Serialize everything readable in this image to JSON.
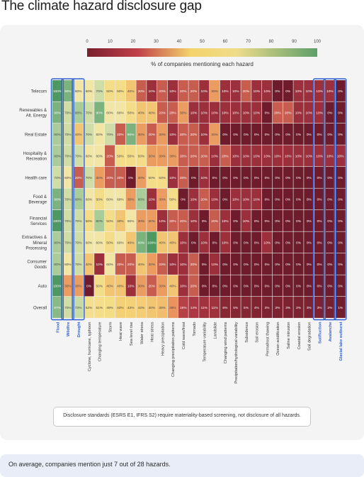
{
  "page": {
    "title": "The climate hazard disclosure gap",
    "note": "Disclosure standards (ESRS E1, IFRS S2) require materiality-based screening, not disclosure of all hazards.",
    "footer": "On average, companies mention just 7 out of 28 hazards."
  },
  "chart_data": {
    "type": "heatmap",
    "title": "% of companies mentioning each hazard",
    "colorbar": {
      "min": 0,
      "max": 100,
      "ticks": [
        0,
        10,
        20,
        30,
        40,
        50,
        60,
        70,
        80,
        90,
        100
      ],
      "colors": [
        "#7a1f2e",
        "#c0414a",
        "#f4d36b",
        "#5e9e6a"
      ]
    },
    "rows": [
      "Telecom",
      "Renewables & Alt. Energy",
      "Real Estate",
      "Hospitality & Recreation",
      "Health care",
      "Food & Beverage",
      "Financial Services",
      "Extractives & Mineral Processing",
      "Consumer Goods",
      "Auto",
      "Overall"
    ],
    "columns": [
      "Flood",
      "Wildfire",
      "Drought",
      "Cyclone, hurricane, typhoon",
      "Changing temperature",
      "Storm",
      "Heat wave",
      "Sea level rise",
      "Water stress",
      "Heat stress",
      "Heavy precipitation",
      "Changing precipitation patterns",
      "Cold wave/frost",
      "Tornado",
      "Temperature variability",
      "Landslide",
      "Changing wind patterns",
      "Precipitation/hydrological variability",
      "Subsidence",
      "Soil erosion",
      "Permafrost thawing",
      "Ocean acidification",
      "Saline intrusion",
      "Coastal erosion",
      "Soil degradation",
      "Solifluction",
      "Avalanche",
      "Glacial lake outburst"
    ],
    "highlighted_columns": [
      "Flood",
      "Wildfire",
      "Drought",
      "Solifluction",
      "Avalanche",
      "Glacial lake outburst"
    ],
    "values": [
      [
        100,
        90,
        60,
        60,
        70,
        50,
        50,
        40,
        20,
        10,
        20,
        10,
        20,
        20,
        10,
        30,
        10,
        10,
        20,
        10,
        10,
        0,
        0,
        10,
        10,
        10,
        10,
        0
      ],
      [
        90,
        70,
        80,
        70,
        90,
        60,
        60,
        50,
        40,
        40,
        20,
        20,
        30,
        10,
        10,
        10,
        10,
        10,
        10,
        10,
        0,
        20,
        20,
        10,
        10,
        10,
        0,
        0
      ],
      [
        80,
        70,
        40,
        70,
        60,
        70,
        20,
        90,
        30,
        20,
        30,
        10,
        20,
        20,
        10,
        30,
        0,
        0,
        0,
        0,
        0,
        0,
        0,
        0,
        0,
        0,
        0,
        0
      ],
      [
        80,
        70,
        70,
        60,
        60,
        20,
        50,
        50,
        50,
        30,
        30,
        30,
        20,
        20,
        20,
        10,
        20,
        10,
        10,
        10,
        10,
        10,
        10,
        10,
        10,
        10,
        10,
        10
      ],
      [
        70,
        60,
        20,
        70,
        30,
        20,
        20,
        0,
        30,
        50,
        50,
        10,
        20,
        0,
        10,
        0,
        0,
        0,
        0,
        0,
        0,
        0,
        0,
        0,
        0,
        0,
        0,
        0
      ],
      [
        90,
        70,
        80,
        60,
        50,
        60,
        60,
        30,
        80,
        10,
        30,
        50,
        0,
        10,
        20,
        10,
        0,
        10,
        10,
        10,
        0,
        0,
        0,
        0,
        0,
        0,
        0,
        0
      ],
      [
        100,
        70,
        70,
        50,
        80,
        50,
        40,
        60,
        30,
        30,
        10,
        20,
        20,
        10,
        0,
        20,
        10,
        0,
        10,
        0,
        0,
        0,
        0,
        0,
        0,
        0,
        0,
        0
      ],
      [
        80,
        70,
        70,
        60,
        60,
        50,
        60,
        40,
        90,
        100,
        40,
        40,
        10,
        0,
        10,
        0,
        10,
        0,
        0,
        0,
        10,
        0,
        0,
        0,
        0,
        0,
        0,
        0
      ],
      [
        80,
        60,
        70,
        40,
        10,
        60,
        20,
        20,
        40,
        30,
        20,
        10,
        10,
        20,
        0,
        10,
        0,
        0,
        0,
        0,
        0,
        0,
        0,
        0,
        0,
        0,
        0,
        0
      ],
      [
        100,
        30,
        30,
        0,
        50,
        40,
        40,
        10,
        30,
        20,
        30,
        40,
        10,
        20,
        0,
        0,
        0,
        0,
        0,
        0,
        0,
        0,
        0,
        0,
        0,
        0,
        0,
        0
      ],
      [
        87,
        70,
        73,
        52,
        51,
        49,
        43,
        43,
        42,
        40,
        38,
        28,
        16,
        14,
        11,
        11,
        6,
        5,
        5,
        4,
        3,
        3,
        3,
        3,
        3,
        3,
        2,
        1
      ]
    ],
    "cell_labels": [
      [
        "100%",
        "90%",
        "60%",
        "60%",
        "70%",
        "50%",
        "50%",
        "40%",
        "20%",
        "10%",
        "20%",
        "10%",
        "20%",
        "20%",
        "10%",
        "30%",
        "10%",
        "10%",
        "20%",
        "10%",
        "10%",
        "0%",
        "0%",
        "10%",
        "10%",
        "10%",
        "10%",
        "0%"
      ],
      [
        "90%",
        "70%",
        "80%",
        "70%",
        "90%",
        "60%",
        "60%",
        "50%",
        "40%",
        "40%",
        "20%",
        "20%",
        "30%",
        "10%",
        "10%",
        "10%",
        "10%",
        "10%",
        "10%",
        "10%",
        "0%",
        "20%",
        "20%",
        "10%",
        "10%",
        "10%",
        "0%",
        "0%"
      ],
      [
        "80%",
        "70%",
        "40%",
        "70%",
        "60%",
        "70%",
        "20%",
        "90%",
        "30%",
        "20%",
        "30%",
        "10%",
        "20%",
        "20%",
        "10%",
        "30%",
        "0%",
        "0%",
        "0%",
        "0%",
        "0%",
        "0%",
        "0%",
        "0%",
        "0%",
        "0%",
        "0%",
        "0%"
      ],
      [
        "80%",
        "70%",
        "70%",
        "60%",
        "60%",
        "20%",
        "50%",
        "50%",
        "50%",
        "30%",
        "30%",
        "30%",
        "20%",
        "20%",
        "20%",
        "10%",
        "20%",
        "10%",
        "10%",
        "10%",
        "10%",
        "10%",
        "10%",
        "10%",
        "10%",
        "10%",
        "10%",
        "10%"
      ],
      [
        "70%",
        "60%",
        "20%",
        "70%",
        "30%",
        "20%",
        "20%",
        "0%",
        "30%",
        "50%",
        "50%",
        "10%",
        "20%",
        "0%",
        "10%",
        "0%",
        "0%",
        "0%",
        "0%",
        "0%",
        "0%",
        "0%",
        "0%",
        "0%",
        "0%",
        "0%",
        "0%",
        "0%"
      ],
      [
        "90%",
        "70%",
        "80%",
        "60%",
        "50%",
        "60%",
        "60%",
        "30%",
        "80%",
        "10%",
        "30%",
        "50%",
        "0%",
        "10%",
        "20%",
        "10%",
        "0%",
        "10%",
        "10%",
        "10%",
        "0%",
        "0%",
        "0%",
        "0%",
        "0%",
        "0%",
        "0%",
        "0%"
      ],
      [
        "100%",
        "70%",
        "70%",
        "50%",
        "80%",
        "50%",
        "40%",
        "60%",
        "30%",
        "30%",
        "10%",
        "20%",
        "20%",
        "10%",
        "0%",
        "20%",
        "10%",
        "0%",
        "10%",
        "0%",
        "0%",
        "0%",
        "0%",
        "0%",
        "0%",
        "0%",
        "0%",
        "0%"
      ],
      [
        "80%",
        "70%",
        "70%",
        "60%",
        "60%",
        "50%",
        "60%",
        "40%",
        "90%",
        "100%",
        "40%",
        "40%",
        "10%",
        "0%",
        "10%",
        "0%",
        "10%",
        "0%",
        "0%",
        "0%",
        "10%",
        "0%",
        "0%",
        "0%",
        "0%",
        "0%",
        "0%",
        "0%"
      ],
      [
        "80%",
        "60%",
        "70%",
        "40%",
        "10%",
        "60%",
        "20%",
        "20%",
        "40%",
        "30%",
        "20%",
        "10%",
        "10%",
        "20%",
        "0%",
        "10%",
        "0%",
        "0%",
        "0%",
        "0%",
        "0%",
        "0%",
        "0%",
        "0%",
        "0%",
        "0%",
        "0%",
        "0%"
      ],
      [
        "100%",
        "30%",
        "30%",
        "0%",
        "50%",
        "40%",
        "40%",
        "10%",
        "30%",
        "20%",
        "30%",
        "40%",
        "10%",
        "20%",
        "0%",
        "0%",
        "0%",
        "0%",
        "0%",
        "0%",
        "0%",
        "0%",
        "0%",
        "0%",
        "0%",
        "0%",
        "0%",
        "0%"
      ],
      [
        "87%",
        "70%",
        "73%",
        "52%",
        "51%",
        "49%",
        "43%",
        "43%",
        "42%",
        "40%",
        "38%",
        "28%",
        "16%",
        "14%",
        "11%",
        "11%",
        "6%",
        "5%",
        "5%",
        "4%",
        "3%",
        "3%",
        "3%",
        "3%",
        "3%",
        "3%",
        "2%",
        "1%"
      ]
    ]
  }
}
